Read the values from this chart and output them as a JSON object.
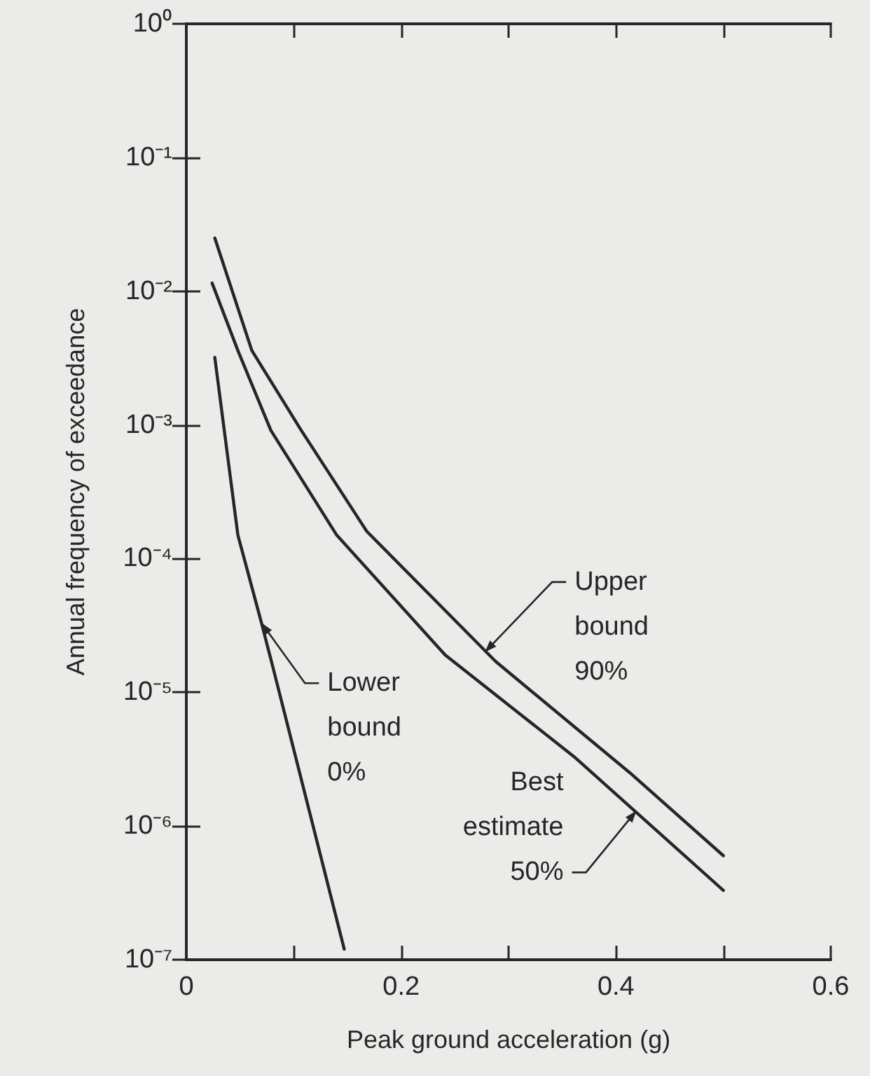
{
  "chart_data": {
    "type": "line",
    "xlabel": "Peak ground acceleration (g)",
    "ylabel": "Annual frequency of exceedance",
    "log": "y",
    "grid": false,
    "marker": "none",
    "line_style": "solid",
    "xlim": [
      0,
      0.6
    ],
    "xticks": [
      0,
      {
        "value": 0.1,
        "label": null
      },
      0.2,
      {
        "value": 0.3,
        "label": null
      },
      0.4,
      {
        "value": 0.5,
        "label": null
      },
      0.6
    ],
    "ylim": [
      1e-07,
      1
    ],
    "yticks": [
      {
        "value": 1e-07,
        "label": "10⁻⁷"
      },
      {
        "value": 1e-06,
        "label": "10⁻⁶"
      },
      {
        "value": 1e-05,
        "label": "10⁻⁵"
      },
      {
        "value": 0.0001,
        "label": "10⁻⁴"
      },
      {
        "value": 0.001,
        "label": "10⁻³"
      },
      {
        "value": 0.01,
        "label": "10⁻²"
      },
      {
        "value": 0.1,
        "label": "10⁻¹"
      },
      {
        "value": 1,
        "label": "10⁰"
      }
    ],
    "series": [
      {
        "color": "#262626",
        "x": [
          0.0265,
          0.061,
          0.107,
          0.168,
          0.288,
          0.413,
          0.5
        ],
        "values": [
          0.025,
          0.0036,
          0.00091,
          0.00016,
          1.7e-05,
          2.5e-06,
          6e-07
        ]
      },
      {
        "color": "#262626",
        "x": [
          0.024,
          0.048,
          0.0787,
          0.14,
          0.241,
          0.361,
          0.5
        ],
        "values": [
          0.0115,
          0.0036,
          0.00091,
          0.00015,
          1.9e-05,
          3.3e-06,
          3.3e-07
        ]
      },
      {
        "color": "#262626",
        "x": [
          0.0265,
          0.048,
          0.07,
          0.081,
          0.147
        ],
        "values": [
          0.0032,
          0.00015,
          3.3e-05,
          1.5e-05,
          1.2e-07
        ]
      }
    ],
    "annotations": [
      {
        "text": "Upper\nbound\n90%",
        "x": 0.278,
        "y": 2e-05
      },
      {
        "text": "Best\nestimate\n50%",
        "x": 0.419,
        "y": 1.3e-06
      },
      {
        "text": "Lower\nbound\n0%",
        "x": 0.07,
        "y": 3.3e-05
      }
    ]
  }
}
